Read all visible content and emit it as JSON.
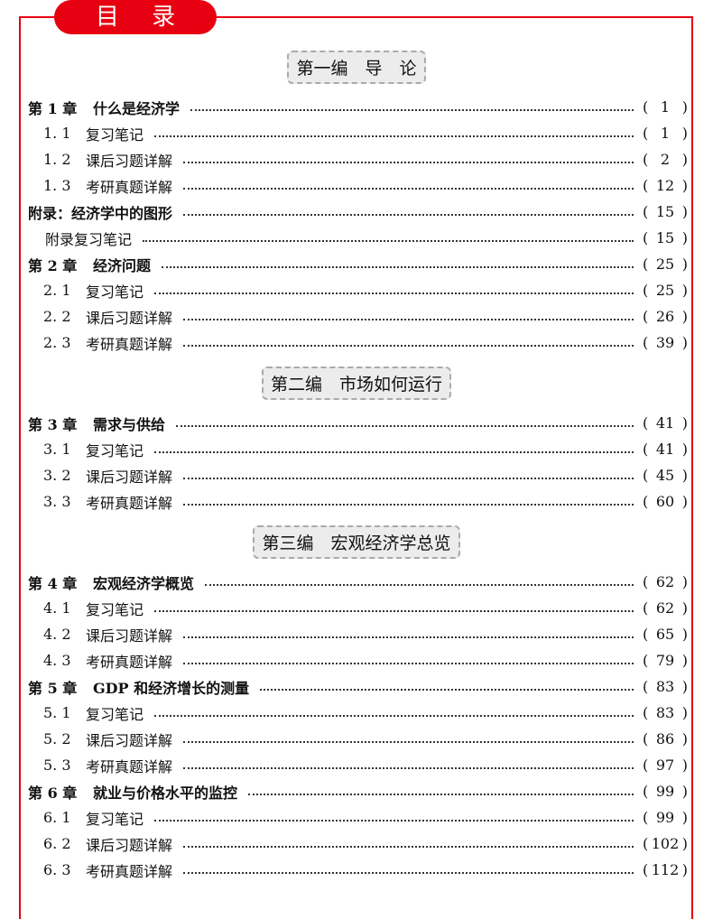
{
  "header": {
    "title": "目 录"
  },
  "parts": [
    {
      "title": "第一编　导　论",
      "entries": [
        {
          "type": "ch",
          "num": "第 1 章",
          "title": "什么是经济学",
          "page": "1"
        },
        {
          "type": "sec",
          "num": "1. 1",
          "title": "复习笔记",
          "page": "1"
        },
        {
          "type": "sec",
          "num": "1. 2",
          "title": "课后习题详解",
          "page": "2"
        },
        {
          "type": "sec",
          "num": "1. 3",
          "title": "考研真题详解",
          "page": "12"
        },
        {
          "type": "app",
          "num": "",
          "title": "附录：经济学中的图形",
          "page": "15"
        },
        {
          "type": "app2",
          "num": "",
          "title": "附录复习笔记",
          "page": "15"
        },
        {
          "type": "ch",
          "num": "第 2 章",
          "title": "经济问题",
          "page": "25"
        },
        {
          "type": "sec",
          "num": "2. 1",
          "title": "复习笔记",
          "page": "25"
        },
        {
          "type": "sec",
          "num": "2. 2",
          "title": "课后习题详解",
          "page": "26"
        },
        {
          "type": "sec",
          "num": "2. 3",
          "title": "考研真题详解",
          "page": "39"
        }
      ]
    },
    {
      "title": "第二编　市场如何运行",
      "entries": [
        {
          "type": "ch",
          "num": "第 3 章",
          "title": "需求与供给",
          "page": "41"
        },
        {
          "type": "sec",
          "num": "3. 1",
          "title": "复习笔记",
          "page": "41"
        },
        {
          "type": "sec",
          "num": "3. 2",
          "title": "课后习题详解",
          "page": "45"
        },
        {
          "type": "sec",
          "num": "3. 3",
          "title": "考研真题详解",
          "page": "60"
        }
      ]
    },
    {
      "title": "第三编　宏观经济学总览",
      "entries": [
        {
          "type": "ch",
          "num": "第 4 章",
          "title": "宏观经济学概览",
          "page": "62"
        },
        {
          "type": "sec",
          "num": "4. 1",
          "title": "复习笔记",
          "page": "62"
        },
        {
          "type": "sec",
          "num": "4. 2",
          "title": "课后习题详解",
          "page": "65"
        },
        {
          "type": "sec",
          "num": "4. 3",
          "title": "考研真题详解",
          "page": "79"
        },
        {
          "type": "ch",
          "num": "第 5 章",
          "title": "GDP 和经济增长的测量",
          "page": "83"
        },
        {
          "type": "sec",
          "num": "5. 1",
          "title": "复习笔记",
          "page": "83"
        },
        {
          "type": "sec",
          "num": "5. 2",
          "title": "课后习题详解",
          "page": "86"
        },
        {
          "type": "sec",
          "num": "5. 3",
          "title": "考研真题详解",
          "page": "97"
        },
        {
          "type": "ch",
          "num": "第 6 章",
          "title": "就业与价格水平的监控",
          "page": "99"
        },
        {
          "type": "sec",
          "num": "6. 1",
          "title": "复习笔记",
          "page": "99"
        },
        {
          "type": "sec",
          "num": "6. 2",
          "title": "课后习题详解",
          "page": "102"
        },
        {
          "type": "sec",
          "num": "6. 3",
          "title": "考研真题详解",
          "page": "112"
        }
      ]
    }
  ]
}
